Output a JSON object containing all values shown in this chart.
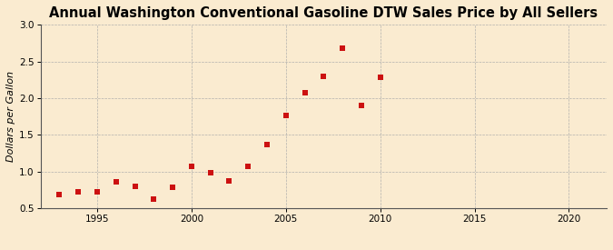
{
  "title": "Annual Washington Conventional Gasoline DTW Sales Price by All Sellers",
  "ylabel": "Dollars per Gallon",
  "background_color": "#faebd0",
  "plot_bg_color": "#faebd0",
  "marker_color": "#cc1111",
  "years": [
    1993,
    1994,
    1995,
    1996,
    1997,
    1998,
    1999,
    2000,
    2001,
    2002,
    2003,
    2004,
    2005,
    2006,
    2007,
    2008,
    2009,
    2010
  ],
  "values": [
    0.69,
    0.72,
    0.72,
    0.86,
    0.8,
    0.63,
    0.79,
    1.07,
    0.98,
    0.87,
    1.07,
    1.37,
    1.77,
    2.07,
    2.3,
    2.68,
    1.9,
    2.29
  ],
  "xlim": [
    1992,
    2022
  ],
  "ylim": [
    0.5,
    3.0
  ],
  "xticks": [
    1995,
    2000,
    2005,
    2010,
    2015,
    2020
  ],
  "yticks": [
    0.5,
    1.0,
    1.5,
    2.0,
    2.5,
    3.0
  ],
  "title_fontsize": 10.5,
  "label_fontsize": 8,
  "tick_fontsize": 7.5,
  "source_fontsize": 7
}
